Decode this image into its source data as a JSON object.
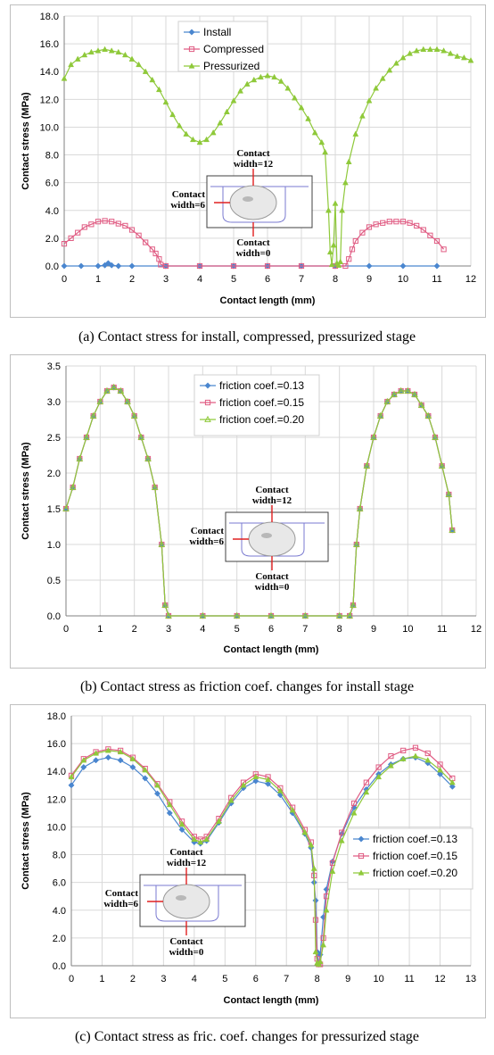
{
  "chart_data": [
    {
      "type": "line",
      "caption": "(a) Contact stress for install, compressed, pressurized stage",
      "xlabel": "Contact length (mm)",
      "ylabel": "Contact stress (MPa)",
      "xlim": [
        0,
        12
      ],
      "ylim": [
        0,
        18
      ],
      "xticks": [
        "0",
        "1",
        "2",
        "3",
        "4",
        "5",
        "6",
        "7",
        "8",
        "9",
        "10",
        "11",
        "12"
      ],
      "yticks": [
        "0.0",
        "2.0",
        "4.0",
        "6.0",
        "8.0",
        "10.0",
        "12.0",
        "14.0",
        "16.0",
        "18.0"
      ],
      "grid": true,
      "legend_position": "top-center",
      "annotation": {
        "top": [
          "Contact",
          "width=12"
        ],
        "left": [
          "Contact",
          "width=6"
        ],
        "bottom": [
          "Contact",
          "width=0"
        ]
      },
      "series": [
        {
          "name": "Install",
          "color": "#4a86cf",
          "marker": "diamond",
          "x": [
            0,
            0.5,
            1,
            1.2,
            1.3,
            1.4,
            1.6,
            2,
            3,
            4,
            5,
            6,
            7,
            8,
            9,
            10,
            11
          ],
          "y": [
            0,
            0,
            0,
            0.05,
            0.2,
            0.05,
            0,
            0,
            0,
            0,
            0,
            0,
            0,
            0,
            0,
            0,
            0
          ]
        },
        {
          "name": "Compressed",
          "color": "#e05c83",
          "marker": "square-open",
          "x": [
            0,
            0.2,
            0.4,
            0.6,
            0.8,
            1.0,
            1.2,
            1.4,
            1.6,
            1.8,
            2.0,
            2.2,
            2.4,
            2.6,
            2.7,
            2.8,
            2.85,
            3,
            4,
            5,
            6,
            7,
            8,
            8.3,
            8.4,
            8.5,
            8.6,
            8.8,
            9.0,
            9.2,
            9.4,
            9.6,
            9.8,
            10.0,
            10.2,
            10.4,
            10.6,
            10.8,
            11.0,
            11.2
          ],
          "y": [
            1.6,
            2.0,
            2.4,
            2.8,
            3.0,
            3.2,
            3.25,
            3.2,
            3.05,
            2.9,
            2.6,
            2.2,
            1.7,
            1.2,
            0.9,
            0.5,
            0.1,
            0,
            0,
            0,
            0,
            0,
            0,
            0,
            0.5,
            1.2,
            1.8,
            2.4,
            2.8,
            3.0,
            3.1,
            3.2,
            3.2,
            3.2,
            3.1,
            2.9,
            2.6,
            2.2,
            1.8,
            1.2
          ]
        },
        {
          "name": "Pressurized",
          "color": "#8fc93a",
          "marker": "triangle",
          "x": [
            0,
            0.2,
            0.4,
            0.6,
            0.8,
            1.0,
            1.2,
            1.4,
            1.6,
            1.8,
            2.0,
            2.2,
            2.4,
            2.6,
            2.8,
            3.0,
            3.2,
            3.4,
            3.6,
            3.8,
            4.0,
            4.2,
            4.4,
            4.6,
            4.8,
            5.0,
            5.2,
            5.4,
            5.6,
            5.8,
            6.0,
            6.2,
            6.4,
            6.6,
            6.8,
            7.0,
            7.2,
            7.4,
            7.6,
            7.7,
            7.8,
            7.85,
            7.9,
            7.95,
            8.0,
            8.05,
            8.1,
            8.15,
            8.2,
            8.3,
            8.4,
            8.6,
            8.8,
            9.0,
            9.2,
            9.4,
            9.6,
            9.8,
            10.0,
            10.2,
            10.4,
            10.6,
            10.8,
            11.0,
            11.2,
            11.4,
            11.6,
            11.8,
            12.0
          ],
          "y": [
            13.5,
            14.5,
            14.9,
            15.2,
            15.4,
            15.5,
            15.6,
            15.5,
            15.4,
            15.2,
            14.9,
            14.5,
            14.0,
            13.4,
            12.7,
            11.8,
            10.9,
            10.1,
            9.5,
            9.1,
            8.9,
            9.1,
            9.6,
            10.3,
            11.1,
            11.9,
            12.6,
            13.1,
            13.4,
            13.6,
            13.7,
            13.6,
            13.3,
            12.8,
            12.1,
            11.4,
            10.6,
            9.6,
            8.9,
            8.2,
            4.0,
            1.0,
            0.1,
            1.5,
            4.5,
            0.2,
            0.05,
            0.3,
            4.0,
            6.0,
            7.5,
            9.5,
            10.8,
            11.9,
            12.8,
            13.5,
            14.1,
            14.6,
            15.0,
            15.3,
            15.5,
            15.6,
            15.6,
            15.6,
            15.5,
            15.3,
            15.1,
            15.0,
            14.8
          ]
        }
      ]
    },
    {
      "type": "line",
      "caption": "(b) Contact stress as friction coef. changes for install stage",
      "xlabel": "Contact length (mm)",
      "ylabel": "Contact stress (MPa)",
      "xlim": [
        0,
        12
      ],
      "ylim": [
        0,
        3.5
      ],
      "xticks": [
        "0",
        "1",
        "2",
        "3",
        "4",
        "5",
        "6",
        "7",
        "8",
        "9",
        "10",
        "11",
        "12"
      ],
      "yticks": [
        "0.0",
        "0.5",
        "1.0",
        "1.5",
        "2.0",
        "2.5",
        "3.0",
        "3.5"
      ],
      "grid": true,
      "legend_position": "top-center",
      "annotation": {
        "top": [
          "Contact",
          "width=12"
        ],
        "left": [
          "Contact",
          "width=6"
        ],
        "bottom": [
          "Contact",
          "width=0"
        ]
      },
      "series": [
        {
          "name": "friction coef.=0.13",
          "color": "#4a86cf",
          "marker": "diamond",
          "x": [
            0,
            0.2,
            0.4,
            0.6,
            0.8,
            1.0,
            1.2,
            1.4,
            1.6,
            1.8,
            2.0,
            2.2,
            2.4,
            2.6,
            2.8,
            2.9,
            3.0,
            4,
            5,
            6,
            7,
            8,
            8.3,
            8.4,
            8.5,
            8.6,
            8.8,
            9.0,
            9.2,
            9.4,
            9.6,
            9.8,
            10.0,
            10.2,
            10.4,
            10.6,
            10.8,
            11.0,
            11.2,
            11.3
          ],
          "y": [
            1.5,
            1.8,
            2.2,
            2.5,
            2.8,
            3.0,
            3.15,
            3.2,
            3.15,
            3.0,
            2.8,
            2.5,
            2.2,
            1.8,
            1.0,
            0.15,
            0,
            0,
            0,
            0,
            0,
            0,
            0,
            0.15,
            1.0,
            1.5,
            2.1,
            2.5,
            2.8,
            3.0,
            3.1,
            3.15,
            3.15,
            3.1,
            2.95,
            2.8,
            2.5,
            2.1,
            1.7,
            1.2
          ]
        },
        {
          "name": "friction coef.=0.15",
          "color": "#e05c83",
          "marker": "square-open",
          "x": [
            0,
            0.2,
            0.4,
            0.6,
            0.8,
            1.0,
            1.2,
            1.4,
            1.6,
            1.8,
            2.0,
            2.2,
            2.4,
            2.6,
            2.8,
            2.9,
            3.0,
            4,
            5,
            6,
            7,
            8,
            8.3,
            8.4,
            8.5,
            8.6,
            8.8,
            9.0,
            9.2,
            9.4,
            9.6,
            9.8,
            10.0,
            10.2,
            10.4,
            10.6,
            10.8,
            11.0,
            11.2,
            11.3
          ],
          "y": [
            1.5,
            1.8,
            2.2,
            2.5,
            2.8,
            3.0,
            3.15,
            3.2,
            3.15,
            3.0,
            2.8,
            2.5,
            2.2,
            1.8,
            1.0,
            0.15,
            0,
            0,
            0,
            0,
            0,
            0,
            0,
            0.15,
            1.0,
            1.5,
            2.1,
            2.5,
            2.8,
            3.0,
            3.1,
            3.15,
            3.15,
            3.1,
            2.95,
            2.8,
            2.5,
            2.1,
            1.7,
            1.2
          ]
        },
        {
          "name": "friction coef.=0.20",
          "color": "#8fc93a",
          "marker": "triangle-open",
          "x": [
            0,
            0.2,
            0.4,
            0.6,
            0.8,
            1.0,
            1.2,
            1.4,
            1.6,
            1.8,
            2.0,
            2.2,
            2.4,
            2.6,
            2.8,
            2.9,
            3.0,
            4,
            5,
            6,
            7,
            8,
            8.3,
            8.4,
            8.5,
            8.6,
            8.8,
            9.0,
            9.2,
            9.4,
            9.6,
            9.8,
            10.0,
            10.2,
            10.4,
            10.6,
            10.8,
            11.0,
            11.2,
            11.3
          ],
          "y": [
            1.5,
            1.8,
            2.2,
            2.5,
            2.8,
            3.0,
            3.15,
            3.2,
            3.15,
            3.0,
            2.8,
            2.5,
            2.2,
            1.8,
            1.0,
            0.15,
            0,
            0,
            0,
            0,
            0,
            0,
            0,
            0.15,
            1.0,
            1.5,
            2.1,
            2.5,
            2.8,
            3.0,
            3.1,
            3.15,
            3.15,
            3.1,
            2.95,
            2.8,
            2.5,
            2.1,
            1.7,
            1.2
          ]
        }
      ]
    },
    {
      "type": "line",
      "caption": "(c) Contact stress as fric. coef. changes for pressurized stage",
      "xlabel": "Contact length (mm)",
      "ylabel": "Contact stress (MPa)",
      "xlim": [
        0,
        13
      ],
      "ylim": [
        0,
        18
      ],
      "xticks": [
        "0",
        "1",
        "2",
        "3",
        "4",
        "5",
        "6",
        "7",
        "8",
        "9",
        "10",
        "11",
        "12",
        "13"
      ],
      "yticks": [
        "0.0",
        "2.0",
        "4.0",
        "6.0",
        "8.0",
        "10.0",
        "12.0",
        "14.0",
        "16.0",
        "18.0"
      ],
      "grid": true,
      "legend_position": "center-right",
      "annotation": {
        "top": [
          "Contact",
          "width=12"
        ],
        "left": [
          "Contact",
          "width=6"
        ],
        "bottom": [
          "Contact",
          "width=0"
        ]
      },
      "series": [
        {
          "name": "friction coef.=0.13",
          "color": "#4a86cf",
          "marker": "diamond",
          "x": [
            0,
            0.4,
            0.8,
            1.2,
            1.6,
            2.0,
            2.4,
            2.8,
            3.2,
            3.6,
            4.0,
            4.2,
            4.4,
            4.8,
            5.2,
            5.6,
            6.0,
            6.4,
            6.8,
            7.2,
            7.6,
            7.8,
            7.9,
            7.95,
            8.0,
            8.05,
            8.1,
            8.2,
            8.3,
            8.5,
            8.8,
            9.2,
            9.6,
            10.0,
            10.4,
            10.8,
            11.2,
            11.6,
            12.0,
            12.4
          ],
          "y": [
            13.0,
            14.3,
            14.8,
            15.0,
            14.8,
            14.3,
            13.5,
            12.4,
            11.0,
            9.8,
            8.9,
            8.8,
            9.0,
            10.3,
            11.7,
            12.8,
            13.3,
            13.1,
            12.3,
            11.0,
            9.5,
            8.5,
            6.0,
            4.7,
            1.0,
            0.1,
            0.8,
            3.5,
            5.5,
            7.5,
            9.5,
            11.4,
            12.7,
            13.8,
            14.5,
            14.9,
            15.0,
            14.6,
            13.8,
            12.9
          ]
        },
        {
          "name": "friction coef.=0.15",
          "color": "#e05c83",
          "marker": "square-open",
          "x": [
            0,
            0.4,
            0.8,
            1.2,
            1.6,
            2.0,
            2.4,
            2.8,
            3.2,
            3.6,
            4.0,
            4.2,
            4.4,
            4.8,
            5.2,
            5.6,
            6.0,
            6.4,
            6.8,
            7.2,
            7.6,
            7.8,
            7.9,
            7.95,
            8.0,
            8.05,
            8.1,
            8.2,
            8.3,
            8.5,
            8.8,
            9.2,
            9.6,
            10.0,
            10.4,
            10.8,
            11.2,
            11.6,
            12.0,
            12.4
          ],
          "y": [
            13.7,
            14.9,
            15.4,
            15.6,
            15.5,
            15.0,
            14.2,
            13.1,
            11.8,
            10.4,
            9.3,
            9.1,
            9.3,
            10.6,
            12.1,
            13.2,
            13.8,
            13.6,
            12.8,
            11.4,
            9.8,
            8.9,
            6.5,
            3.3,
            0.5,
            0.1,
            0.1,
            2.0,
            5.0,
            7.4,
            9.6,
            11.7,
            13.2,
            14.3,
            15.1,
            15.5,
            15.7,
            15.3,
            14.5,
            13.5
          ]
        },
        {
          "name": "friction coef.=0.20",
          "color": "#8fc93a",
          "marker": "triangle",
          "x": [
            0,
            0.4,
            0.8,
            1.2,
            1.6,
            2.0,
            2.4,
            2.8,
            3.2,
            3.6,
            4.0,
            4.2,
            4.4,
            4.8,
            5.2,
            5.6,
            6.0,
            6.4,
            6.8,
            7.2,
            7.6,
            7.8,
            7.9,
            7.95,
            8.0,
            8.05,
            8.1,
            8.2,
            8.3,
            8.5,
            8.8,
            9.2,
            9.6,
            10.0,
            10.4,
            10.8,
            11.2,
            11.6,
            12.0,
            12.4
          ],
          "y": [
            13.6,
            14.8,
            15.3,
            15.5,
            15.4,
            14.9,
            14.1,
            13.0,
            11.6,
            10.2,
            9.1,
            8.9,
            9.1,
            10.4,
            11.9,
            13.0,
            13.6,
            13.4,
            12.6,
            11.2,
            9.6,
            8.7,
            7.0,
            1.0,
            0.2,
            0.1,
            0.3,
            1.5,
            4.0,
            6.8,
            9.0,
            11.0,
            12.5,
            13.6,
            14.4,
            14.9,
            15.1,
            14.8,
            14.1,
            13.2
          ]
        }
      ]
    }
  ]
}
